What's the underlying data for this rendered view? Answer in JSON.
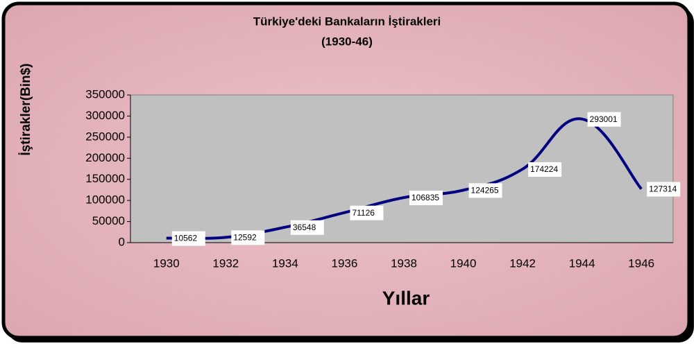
{
  "chart_data": {
    "type": "line",
    "title": "Türkiye'deki Bankaların İştirakleri",
    "subtitle": "(1930-46)",
    "y_label": "İştirakler(Bin$)",
    "x_label": "Yıllar",
    "categories": [
      "1930",
      "1932",
      "1934",
      "1936",
      "1938",
      "1940",
      "1942",
      "1944",
      "1946"
    ],
    "values": [
      10562,
      12592,
      36548,
      71126,
      106835,
      124265,
      174224,
      293001,
      127314
    ],
    "color": "#000080",
    "ylim": [
      0,
      350000
    ],
    "yticks": [
      0,
      50000,
      100000,
      150000,
      200000,
      250000,
      300000,
      350000
    ]
  }
}
